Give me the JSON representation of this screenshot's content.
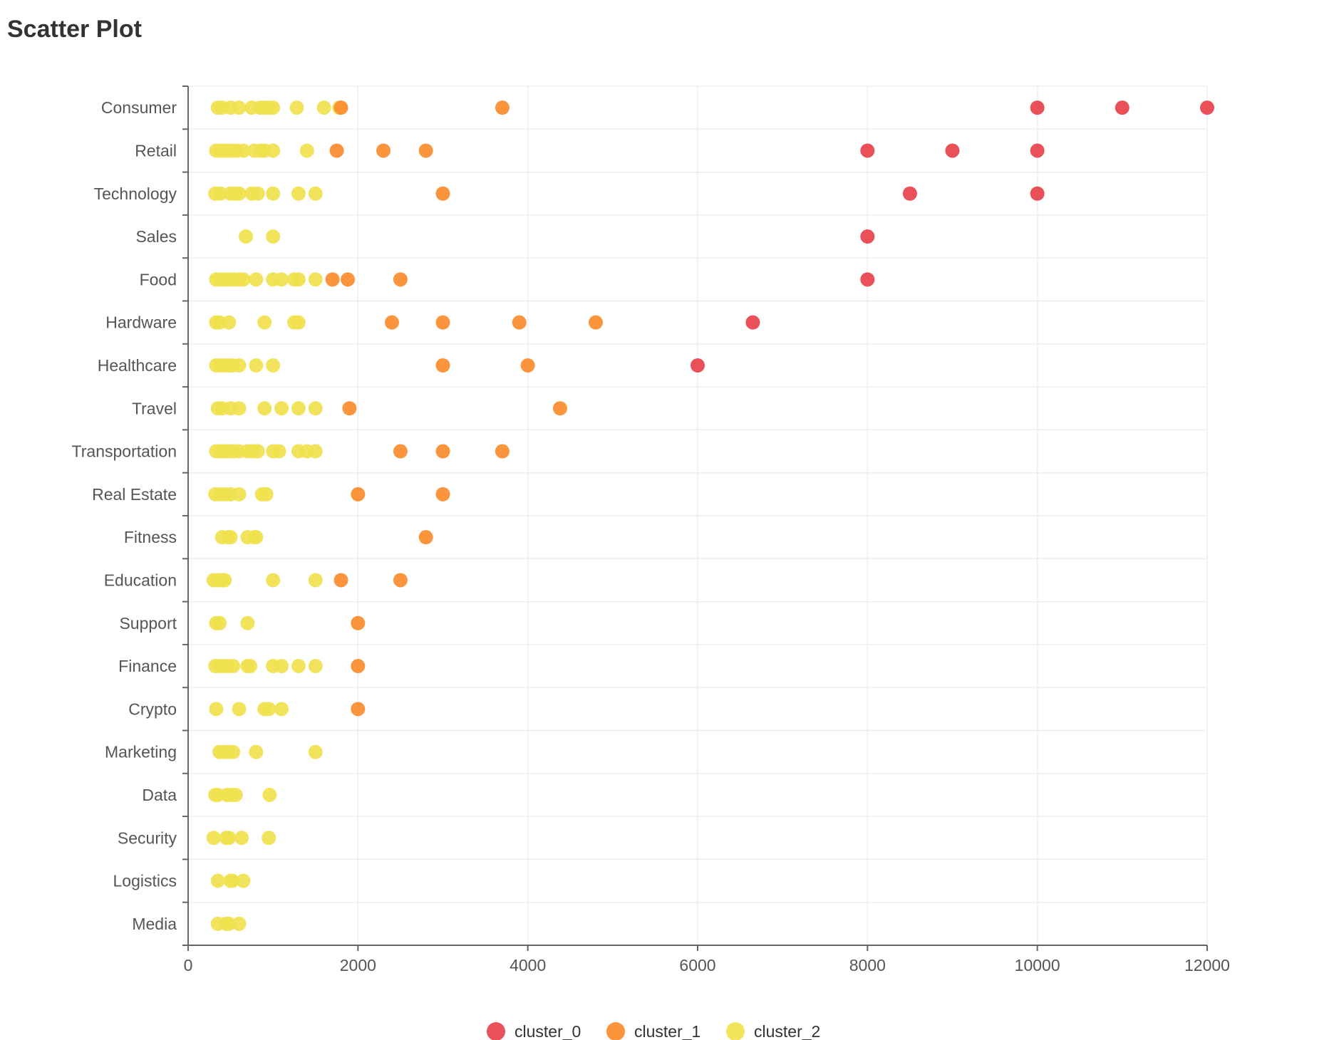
{
  "chart_data": {
    "type": "scatter",
    "title": "Scatter Plot",
    "xlabel": "",
    "ylabel": "",
    "xlim": [
      0,
      12000
    ],
    "x_ticks": [
      0,
      2000,
      4000,
      6000,
      8000,
      10000,
      12000
    ],
    "categories": [
      "Consumer",
      "Retail",
      "Technology",
      "Sales",
      "Food",
      "Hardware",
      "Healthcare",
      "Travel",
      "Transportation",
      "Real Estate",
      "Fitness",
      "Education",
      "Support",
      "Finance",
      "Crypto",
      "Marketing",
      "Data",
      "Security",
      "Logistics",
      "Media"
    ],
    "grid": true,
    "legend_position": "bottom-center",
    "series": [
      {
        "name": "cluster_0",
        "color": "#e8414a",
        "points": [
          {
            "category": "Consumer",
            "x": 10000
          },
          {
            "category": "Consumer",
            "x": 11000
          },
          {
            "category": "Consumer",
            "x": 12000
          },
          {
            "category": "Retail",
            "x": 8000
          },
          {
            "category": "Retail",
            "x": 9000
          },
          {
            "category": "Retail",
            "x": 10000
          },
          {
            "category": "Technology",
            "x": 8500
          },
          {
            "category": "Technology",
            "x": 10000
          },
          {
            "category": "Sales",
            "x": 8000
          },
          {
            "category": "Food",
            "x": 8000
          },
          {
            "category": "Hardware",
            "x": 6650
          },
          {
            "category": "Healthcare",
            "x": 6000
          }
        ]
      },
      {
        "name": "cluster_1",
        "color": "#fb8c2c",
        "points": [
          {
            "category": "Consumer",
            "x": 1800
          },
          {
            "category": "Consumer",
            "x": 3700
          },
          {
            "category": "Retail",
            "x": 1750
          },
          {
            "category": "Retail",
            "x": 2300
          },
          {
            "category": "Retail",
            "x": 2800
          },
          {
            "category": "Technology",
            "x": 3000
          },
          {
            "category": "Food",
            "x": 1700
          },
          {
            "category": "Food",
            "x": 1880
          },
          {
            "category": "Food",
            "x": 2500
          },
          {
            "category": "Hardware",
            "x": 2400
          },
          {
            "category": "Hardware",
            "x": 3000
          },
          {
            "category": "Hardware",
            "x": 3900
          },
          {
            "category": "Hardware",
            "x": 4800
          },
          {
            "category": "Healthcare",
            "x": 3000
          },
          {
            "category": "Healthcare",
            "x": 4000
          },
          {
            "category": "Travel",
            "x": 1900
          },
          {
            "category": "Travel",
            "x": 4380
          },
          {
            "category": "Transportation",
            "x": 2500
          },
          {
            "category": "Transportation",
            "x": 3000
          },
          {
            "category": "Transportation",
            "x": 3700
          },
          {
            "category": "Real Estate",
            "x": 2000
          },
          {
            "category": "Real Estate",
            "x": 3000
          },
          {
            "category": "Fitness",
            "x": 2800
          },
          {
            "category": "Education",
            "x": 1800
          },
          {
            "category": "Education",
            "x": 2500
          },
          {
            "category": "Support",
            "x": 2000
          },
          {
            "category": "Finance",
            "x": 2000
          },
          {
            "category": "Crypto",
            "x": 2000
          }
        ]
      },
      {
        "name": "cluster_2",
        "color": "#f0e24e",
        "points": [
          {
            "category": "Consumer",
            "x": 350
          },
          {
            "category": "Consumer",
            "x": 400
          },
          {
            "category": "Consumer",
            "x": 500
          },
          {
            "category": "Consumer",
            "x": 600
          },
          {
            "category": "Consumer",
            "x": 750
          },
          {
            "category": "Consumer",
            "x": 850
          },
          {
            "category": "Consumer",
            "x": 900
          },
          {
            "category": "Consumer",
            "x": 950
          },
          {
            "category": "Consumer",
            "x": 1000
          },
          {
            "category": "Consumer",
            "x": 1280
          },
          {
            "category": "Consumer",
            "x": 1600
          },
          {
            "category": "Consumer",
            "x": 1780
          },
          {
            "category": "Retail",
            "x": 330
          },
          {
            "category": "Retail",
            "x": 370
          },
          {
            "category": "Retail",
            "x": 420
          },
          {
            "category": "Retail",
            "x": 470
          },
          {
            "category": "Retail",
            "x": 520
          },
          {
            "category": "Retail",
            "x": 570
          },
          {
            "category": "Retail",
            "x": 650
          },
          {
            "category": "Retail",
            "x": 780
          },
          {
            "category": "Retail",
            "x": 850
          },
          {
            "category": "Retail",
            "x": 900
          },
          {
            "category": "Retail",
            "x": 1000
          },
          {
            "category": "Retail",
            "x": 1400
          },
          {
            "category": "Technology",
            "x": 320
          },
          {
            "category": "Technology",
            "x": 380
          },
          {
            "category": "Technology",
            "x": 500
          },
          {
            "category": "Technology",
            "x": 550
          },
          {
            "category": "Technology",
            "x": 600
          },
          {
            "category": "Technology",
            "x": 750
          },
          {
            "category": "Technology",
            "x": 820
          },
          {
            "category": "Technology",
            "x": 1000
          },
          {
            "category": "Technology",
            "x": 1300
          },
          {
            "category": "Technology",
            "x": 1500
          },
          {
            "category": "Sales",
            "x": 680
          },
          {
            "category": "Sales",
            "x": 1000
          },
          {
            "category": "Food",
            "x": 330
          },
          {
            "category": "Food",
            "x": 380
          },
          {
            "category": "Food",
            "x": 430
          },
          {
            "category": "Food",
            "x": 480
          },
          {
            "category": "Food",
            "x": 540
          },
          {
            "category": "Food",
            "x": 600
          },
          {
            "category": "Food",
            "x": 650
          },
          {
            "category": "Food",
            "x": 800
          },
          {
            "category": "Food",
            "x": 1000
          },
          {
            "category": "Food",
            "x": 1100
          },
          {
            "category": "Food",
            "x": 1250
          },
          {
            "category": "Food",
            "x": 1300
          },
          {
            "category": "Food",
            "x": 1500
          },
          {
            "category": "Hardware",
            "x": 330
          },
          {
            "category": "Hardware",
            "x": 370
          },
          {
            "category": "Hardware",
            "x": 480
          },
          {
            "category": "Hardware",
            "x": 900
          },
          {
            "category": "Hardware",
            "x": 1250
          },
          {
            "category": "Hardware",
            "x": 1300
          },
          {
            "category": "Healthcare",
            "x": 330
          },
          {
            "category": "Healthcare",
            "x": 380
          },
          {
            "category": "Healthcare",
            "x": 430
          },
          {
            "category": "Healthcare",
            "x": 480
          },
          {
            "category": "Healthcare",
            "x": 520
          },
          {
            "category": "Healthcare",
            "x": 600
          },
          {
            "category": "Healthcare",
            "x": 800
          },
          {
            "category": "Healthcare",
            "x": 1000
          },
          {
            "category": "Travel",
            "x": 350
          },
          {
            "category": "Travel",
            "x": 400
          },
          {
            "category": "Travel",
            "x": 500
          },
          {
            "category": "Travel",
            "x": 600
          },
          {
            "category": "Travel",
            "x": 900
          },
          {
            "category": "Travel",
            "x": 1100
          },
          {
            "category": "Travel",
            "x": 1300
          },
          {
            "category": "Travel",
            "x": 1500
          },
          {
            "category": "Transportation",
            "x": 330
          },
          {
            "category": "Transportation",
            "x": 380
          },
          {
            "category": "Transportation",
            "x": 430
          },
          {
            "category": "Transportation",
            "x": 480
          },
          {
            "category": "Transportation",
            "x": 530
          },
          {
            "category": "Transportation",
            "x": 600
          },
          {
            "category": "Transportation",
            "x": 700
          },
          {
            "category": "Transportation",
            "x": 760
          },
          {
            "category": "Transportation",
            "x": 820
          },
          {
            "category": "Transportation",
            "x": 1000
          },
          {
            "category": "Transportation",
            "x": 1070
          },
          {
            "category": "Transportation",
            "x": 1300
          },
          {
            "category": "Transportation",
            "x": 1400
          },
          {
            "category": "Transportation",
            "x": 1500
          },
          {
            "category": "Real Estate",
            "x": 320
          },
          {
            "category": "Real Estate",
            "x": 380
          },
          {
            "category": "Real Estate",
            "x": 440
          },
          {
            "category": "Real Estate",
            "x": 500
          },
          {
            "category": "Real Estate",
            "x": 600
          },
          {
            "category": "Real Estate",
            "x": 870
          },
          {
            "category": "Real Estate",
            "x": 920
          },
          {
            "category": "Fitness",
            "x": 400
          },
          {
            "category": "Fitness",
            "x": 470
          },
          {
            "category": "Fitness",
            "x": 500
          },
          {
            "category": "Fitness",
            "x": 700
          },
          {
            "category": "Fitness",
            "x": 780
          },
          {
            "category": "Fitness",
            "x": 800
          },
          {
            "category": "Education",
            "x": 300
          },
          {
            "category": "Education",
            "x": 350
          },
          {
            "category": "Education",
            "x": 400
          },
          {
            "category": "Education",
            "x": 430
          },
          {
            "category": "Education",
            "x": 1000
          },
          {
            "category": "Education",
            "x": 1500
          },
          {
            "category": "Support",
            "x": 330
          },
          {
            "category": "Support",
            "x": 370
          },
          {
            "category": "Support",
            "x": 700
          },
          {
            "category": "Finance",
            "x": 320
          },
          {
            "category": "Finance",
            "x": 370
          },
          {
            "category": "Finance",
            "x": 420
          },
          {
            "category": "Finance",
            "x": 470
          },
          {
            "category": "Finance",
            "x": 530
          },
          {
            "category": "Finance",
            "x": 700
          },
          {
            "category": "Finance",
            "x": 730
          },
          {
            "category": "Finance",
            "x": 1000
          },
          {
            "category": "Finance",
            "x": 1100
          },
          {
            "category": "Finance",
            "x": 1300
          },
          {
            "category": "Finance",
            "x": 1500
          },
          {
            "category": "Crypto",
            "x": 330
          },
          {
            "category": "Crypto",
            "x": 600
          },
          {
            "category": "Crypto",
            "x": 900
          },
          {
            "category": "Crypto",
            "x": 950
          },
          {
            "category": "Crypto",
            "x": 1100
          },
          {
            "category": "Marketing",
            "x": 370
          },
          {
            "category": "Marketing",
            "x": 420
          },
          {
            "category": "Marketing",
            "x": 470
          },
          {
            "category": "Marketing",
            "x": 530
          },
          {
            "category": "Marketing",
            "x": 800
          },
          {
            "category": "Marketing",
            "x": 1500
          },
          {
            "category": "Data",
            "x": 320
          },
          {
            "category": "Data",
            "x": 350
          },
          {
            "category": "Data",
            "x": 460
          },
          {
            "category": "Data",
            "x": 510
          },
          {
            "category": "Data",
            "x": 560
          },
          {
            "category": "Data",
            "x": 960
          },
          {
            "category": "Security",
            "x": 300
          },
          {
            "category": "Security",
            "x": 450
          },
          {
            "category": "Security",
            "x": 480
          },
          {
            "category": "Security",
            "x": 630
          },
          {
            "category": "Security",
            "x": 950
          },
          {
            "category": "Logistics",
            "x": 350
          },
          {
            "category": "Logistics",
            "x": 500
          },
          {
            "category": "Logistics",
            "x": 520
          },
          {
            "category": "Logistics",
            "x": 650
          },
          {
            "category": "Media",
            "x": 350
          },
          {
            "category": "Media",
            "x": 450
          },
          {
            "category": "Media",
            "x": 480
          },
          {
            "category": "Media",
            "x": 600
          }
        ]
      }
    ]
  }
}
